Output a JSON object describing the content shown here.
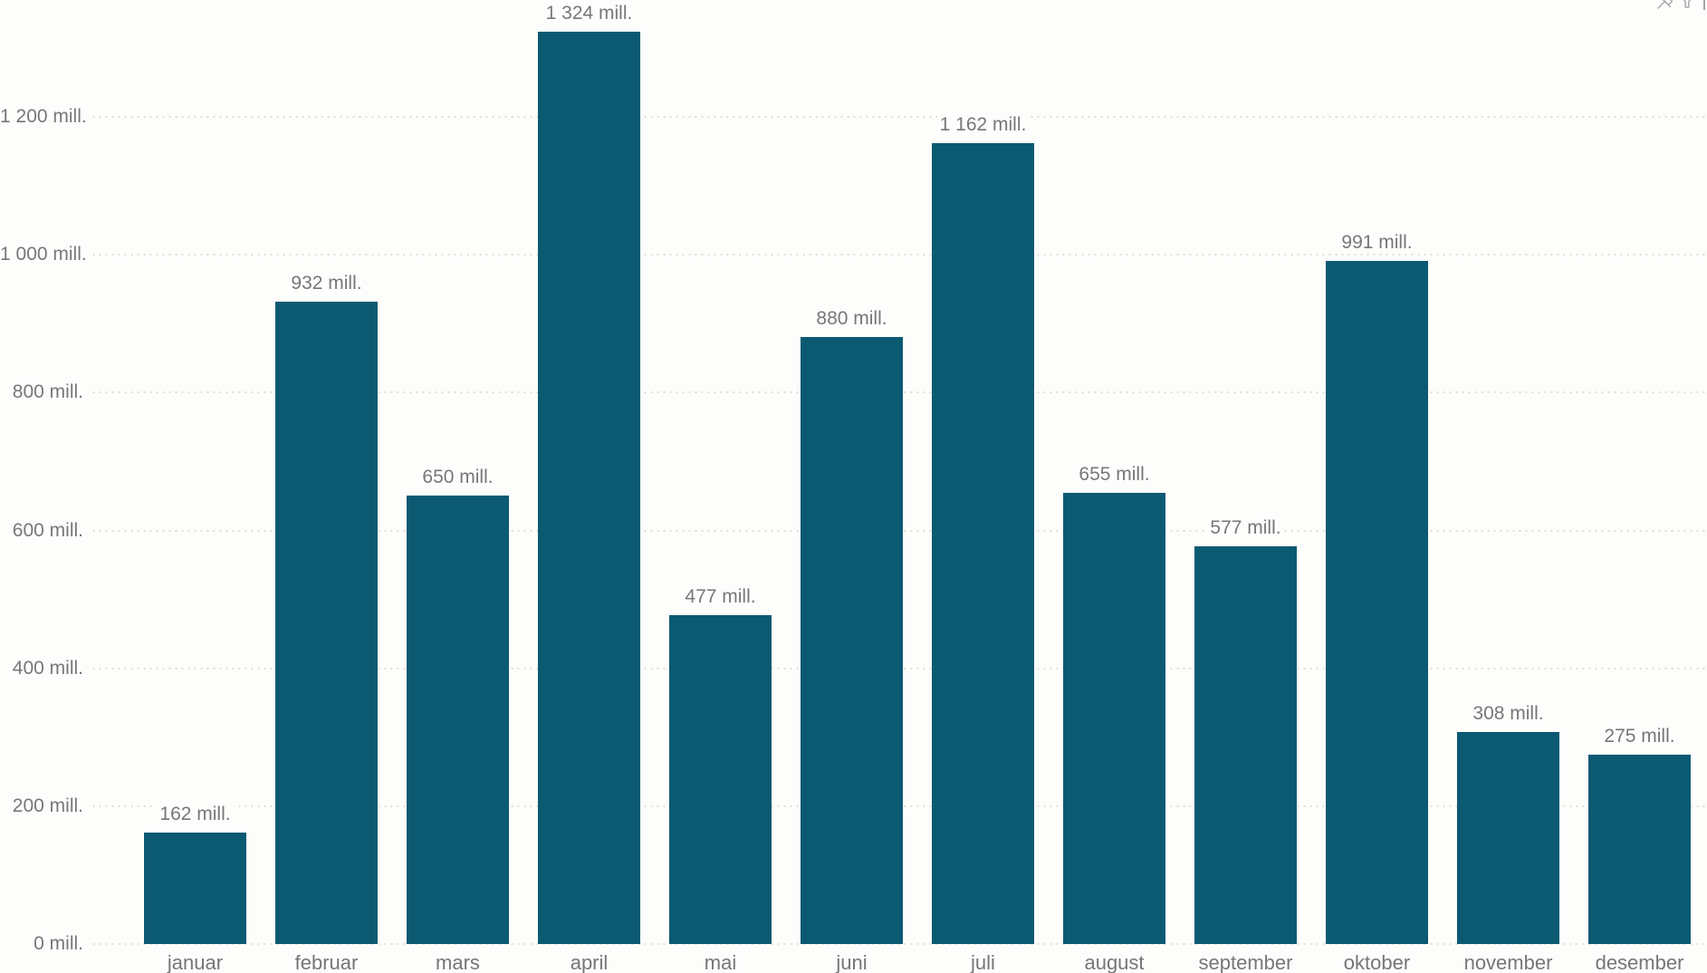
{
  "header": {
    "icons": [
      {
        "name": "pin-icon"
      },
      {
        "name": "filter-icon"
      },
      {
        "name": "more-options-icon"
      }
    ]
  },
  "chart_data": {
    "type": "bar",
    "title": "",
    "xlabel": "",
    "ylabel": "",
    "legend": false,
    "grid": "horizontal-dotted",
    "categories": [
      "januar",
      "februar",
      "mars",
      "april",
      "mai",
      "juni",
      "juli",
      "august",
      "september",
      "oktober",
      "november",
      "desember"
    ],
    "values": [
      162,
      932,
      650,
      1324,
      477,
      880,
      1162,
      655,
      577,
      991,
      308,
      275
    ],
    "value_labels": [
      "162 mill.",
      "932 mill.",
      "650 mill.",
      "1 324 mill.",
      "477 mill.",
      "880 mill.",
      "1 162 mill.",
      "655 mill.",
      "577 mill.",
      "991 mill.",
      "308 mill.",
      "275 mill."
    ],
    "y_ticks": [
      {
        "value": 0,
        "label": "0 mill."
      },
      {
        "value": 200,
        "label": "200 mill."
      },
      {
        "value": 400,
        "label": "400 mill."
      },
      {
        "value": 600,
        "label": "600 mill."
      },
      {
        "value": 800,
        "label": "800 mill."
      },
      {
        "value": 1000,
        "label": "1 000 mill."
      },
      {
        "value": 1200,
        "label": "1 200 mill."
      }
    ],
    "ylim": [
      0,
      1371
    ],
    "value_suffix": " mill.",
    "colors": {
      "bar": "#0C5A72",
      "value_label_text": "#777777",
      "axis_text": "#777777",
      "gridline": "#D9D7D0",
      "background": "#FDFDFB",
      "icon": "#A6A6A6"
    }
  }
}
